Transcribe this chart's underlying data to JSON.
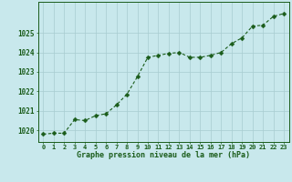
{
  "x": [
    0,
    1,
    2,
    3,
    4,
    5,
    6,
    7,
    8,
    9,
    10,
    11,
    12,
    13,
    14,
    15,
    16,
    17,
    18,
    19,
    20,
    21,
    22,
    23
  ],
  "y": [
    1019.8,
    1019.85,
    1019.85,
    1020.55,
    1020.5,
    1020.75,
    1020.85,
    1021.3,
    1021.85,
    1022.75,
    1023.75,
    1023.85,
    1023.95,
    1024.0,
    1023.75,
    1023.75,
    1023.85,
    1024.0,
    1024.45,
    1024.75,
    1025.35,
    1025.4,
    1025.85,
    1026.0
  ],
  "line_color": "#1a5c1a",
  "marker": "D",
  "marker_size": 2.5,
  "background_color": "#c8e8ec",
  "grid_color": "#a8ccd0",
  "xlabel": "Graphe pression niveau de la mer (hPa)",
  "xlabel_color": "#1a5c1a",
  "tick_color": "#1a5c1a",
  "ylim_min": 1019.4,
  "ylim_max": 1026.6,
  "yticks": [
    1020,
    1021,
    1022,
    1023,
    1024,
    1025
  ],
  "spine_color": "#1a5c1a",
  "xtick_fontsize": 5.0,
  "ytick_fontsize": 5.5,
  "xlabel_fontsize": 6.0
}
